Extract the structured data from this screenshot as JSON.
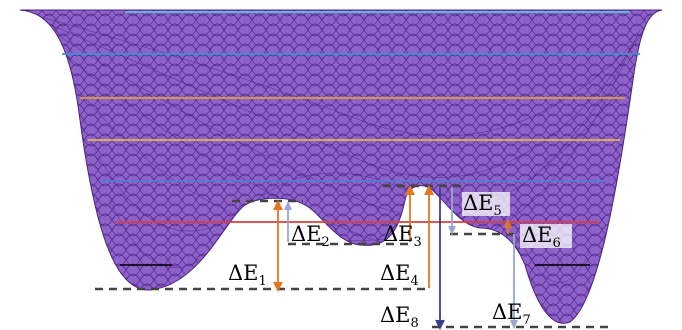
{
  "figure": {
    "colors": {
      "mesh": "#6b3fa6",
      "mesh_fill": "#8a5cc8",
      "orange_arrow": "#e0781f",
      "blue_arrow": "#9aa6cf",
      "navy_arrow": "#3b3d8c",
      "dashed": "#444444"
    },
    "level_line_colors": [
      "#5fbfd6",
      "#3f8fd0",
      "#e59a3c",
      "#e0b74a",
      "#4a7fd0",
      "#d94040"
    ],
    "labels": [
      {
        "id": "dE1",
        "base": "ΔE",
        "sub": "1"
      },
      {
        "id": "dE2",
        "base": "ΔE",
        "sub": "2"
      },
      {
        "id": "dE3",
        "base": "ΔE",
        "sub": "3"
      },
      {
        "id": "dE4",
        "base": "ΔE",
        "sub": "4"
      },
      {
        "id": "dE5",
        "base": "ΔE",
        "sub": "5"
      },
      {
        "id": "dE6",
        "base": "ΔE",
        "sub": "6"
      },
      {
        "id": "dE7",
        "base": "ΔE",
        "sub": "7"
      },
      {
        "id": "dE8",
        "base": "ΔE",
        "sub": "8"
      }
    ]
  }
}
